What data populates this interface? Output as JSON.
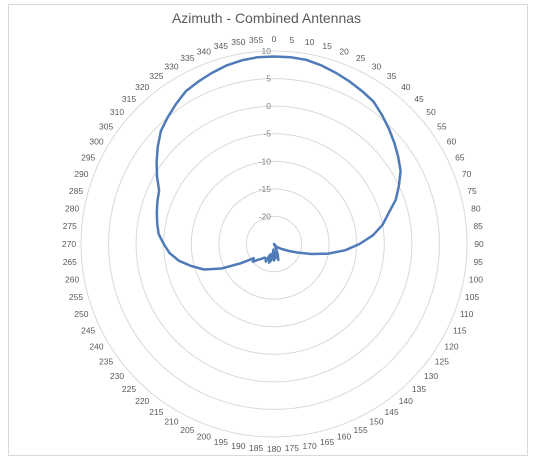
{
  "chart_data": {
    "type": "radar",
    "title": "Azimuth - Combined Antennas",
    "angle_labels": [
      0,
      5,
      10,
      15,
      20,
      25,
      30,
      35,
      40,
      45,
      50,
      55,
      60,
      65,
      70,
      75,
      80,
      85,
      90,
      95,
      100,
      105,
      110,
      115,
      120,
      125,
      130,
      135,
      140,
      145,
      150,
      155,
      160,
      165,
      170,
      175,
      180,
      185,
      190,
      195,
      200,
      205,
      210,
      215,
      220,
      225,
      230,
      235,
      240,
      245,
      250,
      255,
      260,
      265,
      270,
      275,
      280,
      285,
      290,
      295,
      300,
      305,
      310,
      315,
      320,
      325,
      330,
      335,
      340,
      345,
      350,
      355
    ],
    "radial_labels": [
      10,
      5,
      0,
      -5,
      -10,
      -15,
      -20
    ],
    "rlim": [
      -25,
      10
    ],
    "grid": true,
    "colors": {
      "series": "#4f7bb8",
      "grid": "#d9d9d9",
      "axis_text": "#595959"
    },
    "series": [
      {
        "angles": [
          0,
          5,
          10,
          15,
          20,
          25,
          30,
          35,
          40,
          45,
          50,
          55,
          60,
          65,
          70,
          75,
          80,
          85,
          90,
          95,
          100,
          105,
          110,
          115,
          120,
          125,
          130,
          135,
          140,
          145,
          150,
          155,
          160,
          165,
          170,
          175,
          180,
          185,
          190,
          195,
          200,
          205,
          210,
          215,
          220,
          225,
          230,
          235,
          240,
          245,
          250,
          255,
          260,
          265,
          270,
          275,
          280,
          285,
          290,
          295,
          300,
          305,
          310,
          315,
          320,
          325,
          330,
          335,
          340,
          345,
          350,
          355
        ],
        "values": [
          9,
          9,
          8.9,
          8.5,
          8,
          7.5,
          7,
          6.5,
          5.5,
          4.5,
          3.5,
          2.5,
          1.5,
          0,
          -1.5,
          -3.5,
          -5,
          -7,
          -9.5,
          -12,
          -15,
          -18,
          -20.5,
          -22,
          -23,
          -23.5,
          -24,
          -24,
          -24.5,
          -25,
          -25,
          -24.5,
          -23,
          -22,
          -23.5,
          -22.5,
          -22,
          -24,
          -22,
          -21.5,
          -23,
          -21.5,
          -22,
          -22,
          -21.5,
          -21,
          -20,
          -20.5,
          -18,
          -14.5,
          -11.5,
          -9.5,
          -7.5,
          -6,
          -5,
          -4,
          -3.5,
          -3,
          -2.5,
          -2,
          -0.5,
          1,
          2.5,
          4,
          5,
          6,
          7,
          7.5,
          8,
          8.5,
          8.8,
          9
        ]
      }
    ]
  }
}
